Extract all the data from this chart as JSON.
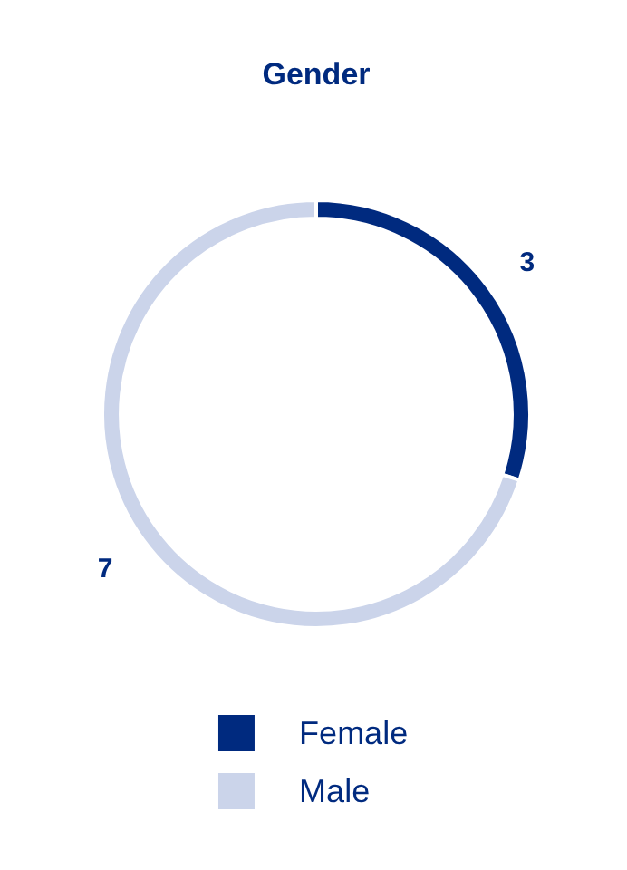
{
  "chart_data": {
    "type": "donut",
    "title": "Gender",
    "categories": [
      "Female",
      "Male"
    ],
    "values": [
      3,
      7
    ],
    "colors": [
      "#002a7f",
      "#cbd4ea"
    ],
    "data_labels": true,
    "legend": "bottom"
  }
}
